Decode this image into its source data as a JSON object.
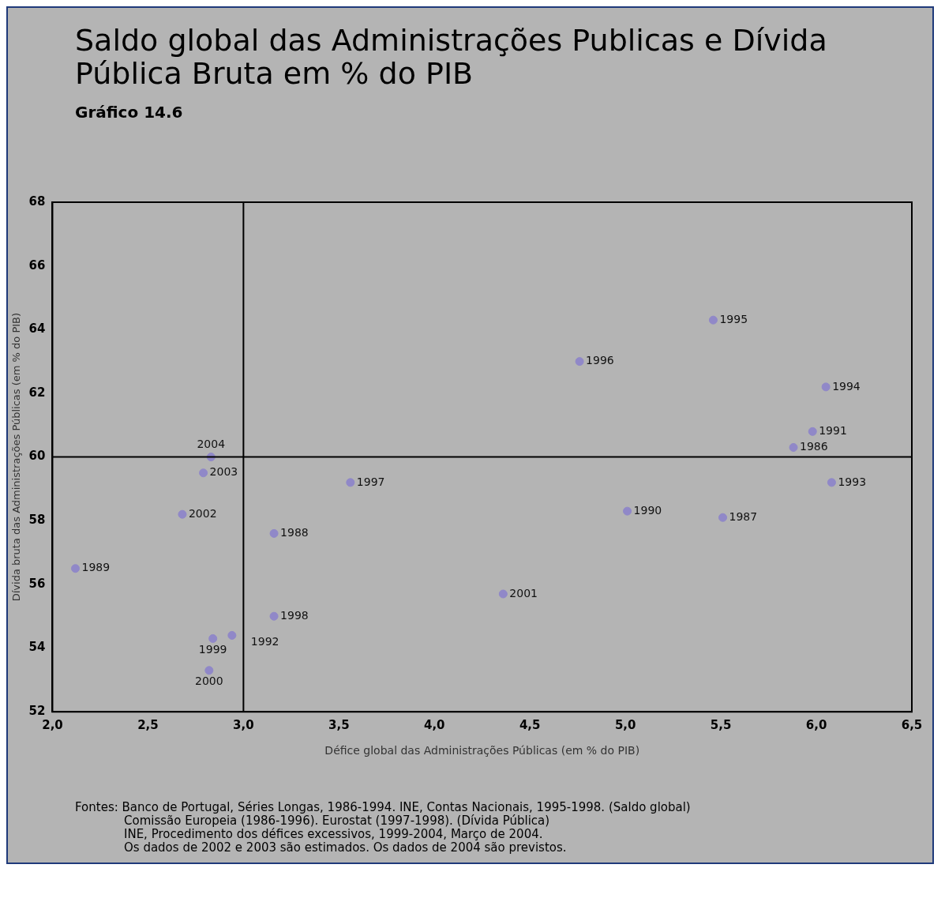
{
  "chart_data": {
    "type": "scatter",
    "title": "Saldo global das Administrações Publicas e Dívida Pública Bruta em % do PIB",
    "subtitle": "Gráfico 14.6",
    "xlabel": "Défice global das Administrações Públicas (em % do PIB)",
    "ylabel": "Dívida bruta das Administrações Públicas (em % do PIB)",
    "series": [
      {
        "color": "#9088c8",
        "x": [
          2.83,
          2.79,
          2.68,
          2.12,
          3.16,
          3.16,
          2.94,
          2.84,
          2.82,
          3.56,
          5.46,
          4.76,
          6.05,
          5.98,
          5.88,
          6.08,
          5.01,
          5.51,
          4.36
        ],
        "values": [
          60.0,
          59.5,
          58.2,
          56.5,
          57.6,
          55.0,
          54.4,
          54.3,
          53.3,
          59.2,
          64.3,
          63.0,
          62.2,
          60.8,
          60.3,
          59.2,
          58.3,
          58.1,
          55.7
        ]
      }
    ],
    "marker": "circle",
    "xlim": [
      2.0,
      6.5
    ],
    "xticks": [
      {
        "value": 2.0,
        "label": "2,0"
      },
      {
        "value": 2.5,
        "label": "2,5"
      },
      {
        "value": 3.0,
        "label": "3,0"
      },
      {
        "value": 3.5,
        "label": "3,5"
      },
      {
        "value": 4.0,
        "label": "4,0"
      },
      {
        "value": 4.5,
        "label": "4,5"
      },
      {
        "value": 5.0,
        "label": "5,0"
      },
      {
        "value": 5.5,
        "label": "5,5"
      },
      {
        "value": 6.0,
        "label": "6,0"
      },
      {
        "value": 6.5,
        "label": "6,5"
      }
    ],
    "ylim": [
      52,
      68
    ],
    "yticks": [
      52,
      54,
      56,
      58,
      60,
      62,
      64,
      66,
      68
    ],
    "ref_lines": [
      {
        "axis": "x",
        "value": 3.0,
        "color": "#000000"
      },
      {
        "axis": "y",
        "value": 60,
        "color": "#000000"
      }
    ],
    "annotations": [
      {
        "text": "2004",
        "x": 2.83,
        "y": 60.0
      },
      {
        "text": "2003",
        "x": 2.79,
        "y": 59.5
      },
      {
        "text": "2002",
        "x": 2.68,
        "y": 58.2
      },
      {
        "text": "1989",
        "x": 2.12,
        "y": 56.5
      },
      {
        "text": "1988",
        "x": 3.16,
        "y": 57.6
      },
      {
        "text": "1998",
        "x": 3.16,
        "y": 55.0
      },
      {
        "text": "1992",
        "x": 2.94,
        "y": 54.4
      },
      {
        "text": "1999",
        "x": 2.84,
        "y": 54.3
      },
      {
        "text": "2000",
        "x": 2.82,
        "y": 53.3
      },
      {
        "text": "1997",
        "x": 3.56,
        "y": 59.2
      },
      {
        "text": "1995",
        "x": 5.46,
        "y": 64.3
      },
      {
        "text": "1996",
        "x": 4.76,
        "y": 63.0
      },
      {
        "text": "1994",
        "x": 6.05,
        "y": 62.2
      },
      {
        "text": "1991",
        "x": 5.98,
        "y": 60.8
      },
      {
        "text": "1986",
        "x": 5.88,
        "y": 60.3
      },
      {
        "text": "1993",
        "x": 6.08,
        "y": 59.2
      },
      {
        "text": "1990",
        "x": 5.01,
        "y": 58.3
      },
      {
        "text": "1987",
        "x": 5.51,
        "y": 58.1
      },
      {
        "text": "2001",
        "x": 4.36,
        "y": 55.7
      },
      "Fontes: Banco de Portugal, Séries Longas, 1986-1994. INE, Contas Nacionais, 1995-1998. (Saldo global)",
      "Comissão Europeia (1986-1996). Eurostat (1997-1998). (Dívida Pública)",
      "INE, Procedimento dos défices excessivos, 1999-2004, Março de 2004.",
      "Os dados de 2002 e 2003 são estimados. Os dados de 2004 são previstos."
    ]
  }
}
